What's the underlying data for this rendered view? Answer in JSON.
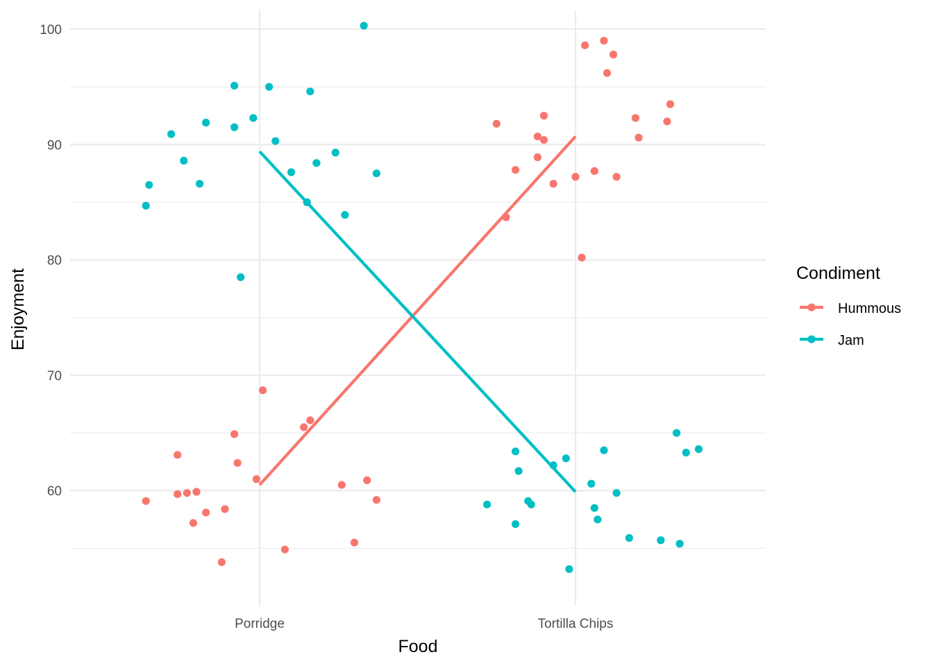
{
  "chart_data": {
    "type": "scatter",
    "title": "",
    "xlabel": "Food",
    "ylabel": "Enjoyment",
    "categories": [
      "Porridge",
      "Tortilla Chips"
    ],
    "ylim": [
      51,
      103
    ],
    "y_ticks": [
      "60",
      "70",
      "80",
      "90",
      "100"
    ],
    "grid": true,
    "legend": {
      "title": "Condiment",
      "placement": "right"
    },
    "series": [
      {
        "name": "Hummous",
        "color": "#F8766D",
        "line": [
          60.5,
          90.7
        ],
        "points": [
          {
            "x": "Porridge",
            "jitter": -0.36,
            "y": 59.1
          },
          {
            "x": "Porridge",
            "jitter": -0.26,
            "y": 63.1
          },
          {
            "x": "Porridge",
            "jitter": -0.26,
            "y": 59.7
          },
          {
            "x": "Porridge",
            "jitter": -0.23,
            "y": 59.8
          },
          {
            "x": "Porridge",
            "jitter": -0.21,
            "y": 57.2
          },
          {
            "x": "Porridge",
            "jitter": -0.2,
            "y": 59.9
          },
          {
            "x": "Porridge",
            "jitter": -0.17,
            "y": 58.1
          },
          {
            "x": "Porridge",
            "jitter": -0.12,
            "y": 53.8
          },
          {
            "x": "Porridge",
            "jitter": -0.11,
            "y": 58.4
          },
          {
            "x": "Porridge",
            "jitter": -0.08,
            "y": 64.9
          },
          {
            "x": "Porridge",
            "jitter": -0.07,
            "y": 62.4
          },
          {
            "x": "Porridge",
            "jitter": -0.01,
            "y": 61.0
          },
          {
            "x": "Porridge",
            "jitter": 0.01,
            "y": 68.7
          },
          {
            "x": "Porridge",
            "jitter": 0.08,
            "y": 54.9
          },
          {
            "x": "Porridge",
            "jitter": 0.14,
            "y": 65.5
          },
          {
            "x": "Porridge",
            "jitter": 0.16,
            "y": 66.1
          },
          {
            "x": "Porridge",
            "jitter": 0.26,
            "y": 60.5
          },
          {
            "x": "Porridge",
            "jitter": 0.3,
            "y": 55.5
          },
          {
            "x": "Porridge",
            "jitter": 0.34,
            "y": 60.9
          },
          {
            "x": "Porridge",
            "jitter": 0.37,
            "y": 59.2
          },
          {
            "x": "Tortilla Chips",
            "jitter": -0.25,
            "y": 91.8
          },
          {
            "x": "Tortilla Chips",
            "jitter": -0.22,
            "y": 83.7
          },
          {
            "x": "Tortilla Chips",
            "jitter": -0.19,
            "y": 87.8
          },
          {
            "x": "Tortilla Chips",
            "jitter": -0.12,
            "y": 90.7
          },
          {
            "x": "Tortilla Chips",
            "jitter": -0.12,
            "y": 88.9
          },
          {
            "x": "Tortilla Chips",
            "jitter": -0.1,
            "y": 92.5
          },
          {
            "x": "Tortilla Chips",
            "jitter": -0.1,
            "y": 90.4
          },
          {
            "x": "Tortilla Chips",
            "jitter": -0.07,
            "y": 86.6
          },
          {
            "x": "Tortilla Chips",
            "jitter": 0.0,
            "y": 87.2
          },
          {
            "x": "Tortilla Chips",
            "jitter": 0.02,
            "y": 80.2
          },
          {
            "x": "Tortilla Chips",
            "jitter": 0.03,
            "y": 98.6
          },
          {
            "x": "Tortilla Chips",
            "jitter": 0.06,
            "y": 87.7
          },
          {
            "x": "Tortilla Chips",
            "jitter": 0.09,
            "y": 99.0
          },
          {
            "x": "Tortilla Chips",
            "jitter": 0.1,
            "y": 96.2
          },
          {
            "x": "Tortilla Chips",
            "jitter": 0.12,
            "y": 97.8
          },
          {
            "x": "Tortilla Chips",
            "jitter": 0.13,
            "y": 87.2
          },
          {
            "x": "Tortilla Chips",
            "jitter": 0.19,
            "y": 92.3
          },
          {
            "x": "Tortilla Chips",
            "jitter": 0.2,
            "y": 90.6
          },
          {
            "x": "Tortilla Chips",
            "jitter": 0.29,
            "y": 92.0
          },
          {
            "x": "Tortilla Chips",
            "jitter": 0.3,
            "y": 93.5
          }
        ]
      },
      {
        "name": "Jam",
        "color": "#00BFC4",
        "line": [
          89.4,
          59.9
        ],
        "points": [
          {
            "x": "Porridge",
            "jitter": -0.36,
            "y": 84.7
          },
          {
            "x": "Porridge",
            "jitter": -0.35,
            "y": 86.5
          },
          {
            "x": "Porridge",
            "jitter": -0.28,
            "y": 90.9
          },
          {
            "x": "Porridge",
            "jitter": -0.24,
            "y": 88.6
          },
          {
            "x": "Porridge",
            "jitter": -0.19,
            "y": 86.6
          },
          {
            "x": "Porridge",
            "jitter": -0.17,
            "y": 91.9
          },
          {
            "x": "Porridge",
            "jitter": -0.08,
            "y": 95.1
          },
          {
            "x": "Porridge",
            "jitter": -0.08,
            "y": 91.5
          },
          {
            "x": "Porridge",
            "jitter": -0.06,
            "y": 78.5
          },
          {
            "x": "Porridge",
            "jitter": -0.02,
            "y": 92.3
          },
          {
            "x": "Porridge",
            "jitter": 0.03,
            "y": 95.0
          },
          {
            "x": "Porridge",
            "jitter": 0.05,
            "y": 90.3
          },
          {
            "x": "Porridge",
            "jitter": 0.1,
            "y": 87.6
          },
          {
            "x": "Porridge",
            "jitter": 0.15,
            "y": 85.0
          },
          {
            "x": "Porridge",
            "jitter": 0.16,
            "y": 94.6
          },
          {
            "x": "Porridge",
            "jitter": 0.18,
            "y": 88.4
          },
          {
            "x": "Porridge",
            "jitter": 0.24,
            "y": 89.3
          },
          {
            "x": "Porridge",
            "jitter": 0.27,
            "y": 83.9
          },
          {
            "x": "Porridge",
            "jitter": 0.33,
            "y": 100.3
          },
          {
            "x": "Porridge",
            "jitter": 0.37,
            "y": 87.5
          },
          {
            "x": "Tortilla Chips",
            "jitter": -0.28,
            "y": 58.8
          },
          {
            "x": "Tortilla Chips",
            "jitter": -0.19,
            "y": 63.4
          },
          {
            "x": "Tortilla Chips",
            "jitter": -0.19,
            "y": 57.1
          },
          {
            "x": "Tortilla Chips",
            "jitter": -0.18,
            "y": 61.7
          },
          {
            "x": "Tortilla Chips",
            "jitter": -0.15,
            "y": 59.1
          },
          {
            "x": "Tortilla Chips",
            "jitter": -0.14,
            "y": 58.8
          },
          {
            "x": "Tortilla Chips",
            "jitter": -0.07,
            "y": 62.2
          },
          {
            "x": "Tortilla Chips",
            "jitter": -0.03,
            "y": 62.8
          },
          {
            "x": "Tortilla Chips",
            "jitter": -0.02,
            "y": 53.2
          },
          {
            "x": "Tortilla Chips",
            "jitter": 0.05,
            "y": 60.6
          },
          {
            "x": "Tortilla Chips",
            "jitter": 0.06,
            "y": 58.5
          },
          {
            "x": "Tortilla Chips",
            "jitter": 0.07,
            "y": 57.5
          },
          {
            "x": "Tortilla Chips",
            "jitter": 0.09,
            "y": 63.5
          },
          {
            "x": "Tortilla Chips",
            "jitter": 0.13,
            "y": 59.8
          },
          {
            "x": "Tortilla Chips",
            "jitter": 0.17,
            "y": 55.9
          },
          {
            "x": "Tortilla Chips",
            "jitter": 0.27,
            "y": 55.7
          },
          {
            "x": "Tortilla Chips",
            "jitter": 0.32,
            "y": 65.0
          },
          {
            "x": "Tortilla Chips",
            "jitter": 0.33,
            "y": 55.4
          },
          {
            "x": "Tortilla Chips",
            "jitter": 0.35,
            "y": 63.3
          },
          {
            "x": "Tortilla Chips",
            "jitter": 0.39,
            "y": 63.6
          }
        ]
      }
    ]
  }
}
